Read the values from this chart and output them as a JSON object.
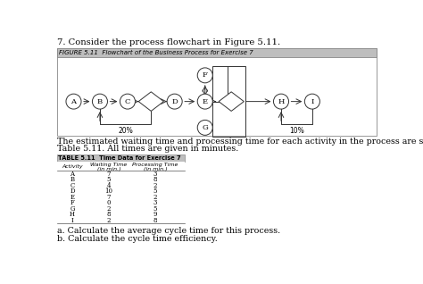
{
  "title": "7. Consider the process flowchart in Figure 5.11.",
  "figure_title": "FIGURE 5.11  Flowchart of the Business Process for Exercise 7",
  "table_title": "TABLE 5.11  Time Data for Exercise 7",
  "body_text1": "The estimated waiting time and processing time for each activity in the process are shown in",
  "body_text2": "Table 5.11. All times are given in minutes.",
  "question_a": "a. Calculate the average cycle time for this process.",
  "question_b": "b. Calculate the cycle time efficiency.",
  "activities": [
    "A",
    "B",
    "C",
    "D",
    "E",
    "F",
    "G",
    "H",
    "I"
  ],
  "waiting_times": [
    7,
    5,
    4,
    10,
    7,
    0,
    2,
    8,
    2
  ],
  "processing_times": [
    3,
    8,
    2,
    5,
    2,
    3,
    5,
    9,
    8
  ],
  "pct_20": "20%",
  "pct_10": "10%"
}
